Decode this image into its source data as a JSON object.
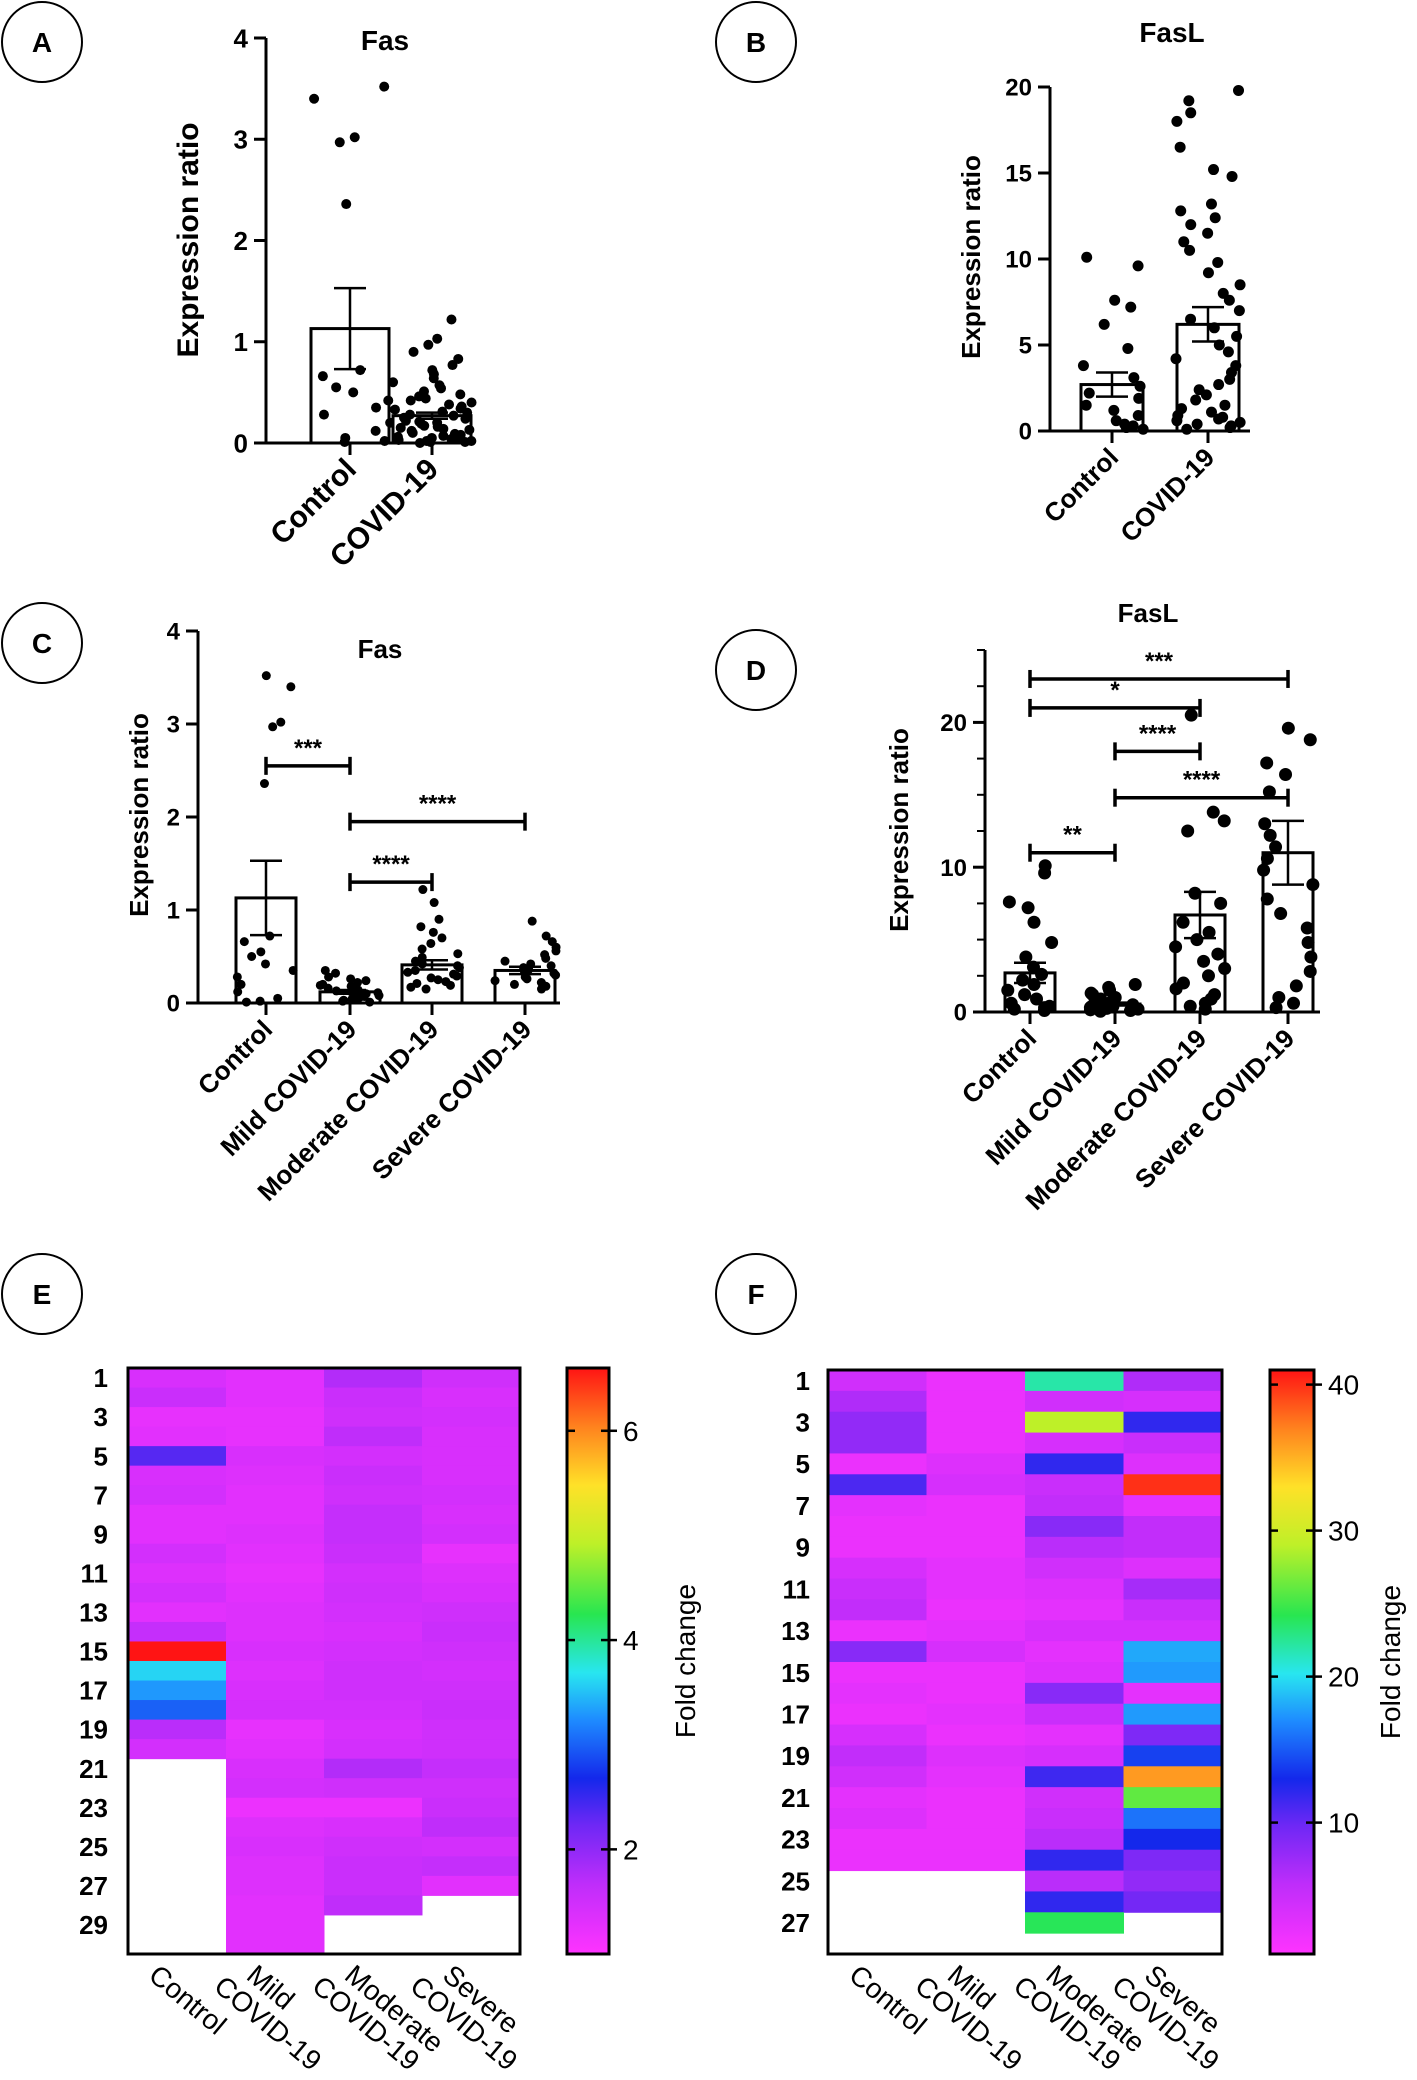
{
  "chart_data": [
    {
      "panel": "A",
      "type": "bar",
      "title": "Fas",
      "ylabel": "Expression ratio",
      "ylim": [
        0,
        4
      ],
      "yticks": [
        0,
        1,
        2,
        3,
        4
      ],
      "yticks_label": [
        "0",
        "1",
        "2",
        "3",
        "4"
      ],
      "categories": [
        "Control",
        "COVID-19"
      ],
      "values": [
        1.13,
        0.27
      ],
      "sem": [
        0.4,
        0.03
      ],
      "points": [
        [
          3.52,
          3.4,
          3.02,
          2.97,
          2.36,
          0.72,
          0.66,
          0.55,
          0.5,
          0.42,
          0.35,
          0.28,
          0.2,
          0.12,
          0.05,
          0.02,
          0.01
        ],
        [
          1.22,
          1.03,
          0.97,
          0.9,
          0.83,
          0.77,
          0.72,
          0.68,
          0.64,
          0.6,
          0.57,
          0.54,
          0.51,
          0.48,
          0.46,
          0.44,
          0.42,
          0.4,
          0.38,
          0.36,
          0.34,
          0.33,
          0.31,
          0.3,
          0.28,
          0.27,
          0.25,
          0.24,
          0.22,
          0.21,
          0.2,
          0.19,
          0.17,
          0.16,
          0.15,
          0.14,
          0.13,
          0.12,
          0.1,
          0.09,
          0.08,
          0.07,
          0.06,
          0.05,
          0.05,
          0.04,
          0.03,
          0.02,
          0.02,
          0.01,
          0.01,
          0.0
        ]
      ]
    },
    {
      "panel": "B",
      "type": "bar",
      "title": "FasL",
      "ylabel": "Expression ratio",
      "ylim": [
        0,
        20
      ],
      "yticks": [
        0,
        5,
        10,
        15,
        20
      ],
      "yticks_label": [
        "0",
        "5",
        "10",
        "15",
        "20"
      ],
      "categories": [
        "Control",
        "COVID-19"
      ],
      "values": [
        2.7,
        6.2
      ],
      "sem": [
        0.7,
        1.0
      ],
      "points": [
        [
          10.1,
          9.6,
          7.6,
          7.2,
          6.2,
          4.8,
          3.8,
          3.1,
          2.6,
          2.2,
          1.9,
          1.5,
          1.2,
          0.9,
          0.6,
          0.4,
          0.3,
          0.2,
          0.1
        ],
        [
          19.8,
          19.2,
          18.5,
          18.0,
          16.5,
          15.2,
          14.8,
          13.2,
          12.8,
          12.4,
          12.0,
          11.5,
          11.0,
          10.5,
          9.8,
          9.2,
          8.5,
          8.0,
          7.6,
          7.0,
          6.5,
          6.0,
          5.5,
          5.0,
          4.6,
          4.2,
          3.8,
          3.4,
          3.0,
          2.7,
          2.4,
          2.1,
          1.8,
          1.5,
          1.3,
          1.1,
          0.9,
          0.8,
          0.7,
          0.6,
          0.5,
          0.4,
          0.3,
          0.2,
          0.1
        ]
      ]
    },
    {
      "panel": "C",
      "type": "bar",
      "title": "Fas",
      "ylabel": "Expression ratio",
      "ylim": [
        0,
        4
      ],
      "yticks": [
        0,
        1,
        2,
        3,
        4
      ],
      "yticks_label": [
        "0",
        "1",
        "2",
        "3",
        "4"
      ],
      "categories": [
        "Control",
        "Mild COVID-19",
        "Moderate COVID-19",
        "Severe COVID-19"
      ],
      "values": [
        1.13,
        0.12,
        0.41,
        0.35
      ],
      "sem": [
        0.4,
        0.02,
        0.05,
        0.04
      ],
      "points": [
        [
          3.52,
          3.4,
          3.02,
          2.97,
          2.36,
          0.72,
          0.66,
          0.55,
          0.5,
          0.42,
          0.35,
          0.28,
          0.2,
          0.12,
          0.05,
          0.02,
          0.01
        ],
        [
          0.35,
          0.32,
          0.28,
          0.26,
          0.24,
          0.22,
          0.2,
          0.19,
          0.18,
          0.16,
          0.15,
          0.14,
          0.13,
          0.12,
          0.11,
          0.1,
          0.09,
          0.08,
          0.07,
          0.06,
          0.05,
          0.04,
          0.03,
          0.02,
          0.01
        ],
        [
          1.22,
          1.08,
          0.9,
          0.82,
          0.76,
          0.7,
          0.64,
          0.58,
          0.53,
          0.49,
          0.45,
          0.42,
          0.4,
          0.38,
          0.35,
          0.33,
          0.31,
          0.29,
          0.27,
          0.25,
          0.23,
          0.21,
          0.19,
          0.17,
          0.15
        ],
        [
          0.88,
          0.72,
          0.66,
          0.6,
          0.56,
          0.52,
          0.48,
          0.45,
          0.42,
          0.4,
          0.38,
          0.36,
          0.34,
          0.32,
          0.3,
          0.28,
          0.26,
          0.24,
          0.22,
          0.2,
          0.18,
          0.15
        ]
      ],
      "significance": [
        {
          "from": 0,
          "to": 1,
          "y": 2.55,
          "label": "***"
        },
        {
          "from": 1,
          "to": 2,
          "y": 1.3,
          "label": "****"
        },
        {
          "from": 1,
          "to": 3,
          "y": 1.95,
          "label": "****"
        }
      ]
    },
    {
      "panel": "D",
      "type": "bar",
      "title": "FasL",
      "ylabel": "Expression ratio",
      "ylim": [
        0,
        25
      ],
      "yticks": [
        0,
        10,
        20
      ],
      "yticks_label": [
        "0",
        "10",
        "20"
      ],
      "minor_step": 2.5,
      "categories": [
        "Control",
        "Mild COVID-19",
        "Moderate COVID-19",
        "Severe COVID-19"
      ],
      "values": [
        2.7,
        0.55,
        6.7,
        11.0
      ],
      "sem": [
        0.7,
        0.1,
        1.6,
        2.2
      ],
      "points": [
        [
          10.1,
          9.6,
          7.6,
          7.2,
          6.2,
          4.8,
          3.8,
          3.1,
          2.6,
          2.2,
          1.9,
          1.5,
          1.2,
          0.9,
          0.6,
          0.4,
          0.3,
          0.2,
          0.1
        ],
        [
          1.9,
          1.7,
          1.5,
          1.3,
          1.2,
          1.0,
          0.9,
          0.8,
          0.7,
          0.6,
          0.5,
          0.4,
          0.35,
          0.3,
          0.25,
          0.2,
          0.15,
          0.1,
          0.05
        ],
        [
          20.5,
          13.8,
          13.2,
          12.5,
          8.2,
          7.5,
          6.2,
          5.5,
          5.0,
          4.5,
          4.0,
          3.5,
          3.0,
          2.5,
          2.0,
          1.6,
          1.2,
          0.9,
          0.6,
          0.4,
          0.2
        ],
        [
          19.6,
          18.8,
          17.2,
          16.4,
          15.2,
          13.0,
          12.2,
          11.4,
          10.6,
          9.8,
          8.8,
          7.8,
          6.8,
          5.8,
          4.8,
          3.8,
          2.8,
          1.8,
          1.0,
          0.6,
          0.3
        ]
      ],
      "significance": [
        {
          "from": 0,
          "to": 3,
          "y": 23.0,
          "label": "***"
        },
        {
          "from": 0,
          "to": 2,
          "y": 21.0,
          "label": "*"
        },
        {
          "from": 1,
          "to": 2,
          "y": 18.0,
          "label": "****"
        },
        {
          "from": 1,
          "to": 3,
          "y": 14.8,
          "label": "****"
        },
        {
          "from": 0,
          "to": 1,
          "y": 11.0,
          "label": "**"
        }
      ]
    },
    {
      "panel": "E",
      "type": "heatmap",
      "columns": [
        "Control",
        "Mild COVID-19",
        "Moderate COVID-19",
        "Severe COVID-19"
      ],
      "row_labels": [
        "1",
        "3",
        "5",
        "7",
        "9",
        "11",
        "13",
        "15",
        "17",
        "19",
        "21",
        "23",
        "25",
        "27",
        "29"
      ],
      "n_rows": 30,
      "colorbar": {
        "label": "Fold change",
        "vmin": 1.0,
        "vmax": 6.6,
        "ticks": [
          2,
          4,
          6
        ],
        "ticks_label": [
          "2",
          "4",
          "6"
        ]
      },
      "values": [
        [
          1.4,
          1.3,
          1.75,
          1.5
        ],
        [
          1.55,
          1.3,
          1.55,
          1.4
        ],
        [
          1.25,
          1.25,
          1.5,
          1.45
        ],
        [
          1.3,
          1.25,
          1.65,
          1.4
        ],
        [
          2.35,
          1.4,
          1.45,
          1.4
        ],
        [
          1.4,
          1.35,
          1.55,
          1.4
        ],
        [
          1.45,
          1.3,
          1.5,
          1.45
        ],
        [
          1.3,
          1.3,
          1.6,
          1.4
        ],
        [
          1.3,
          1.35,
          1.6,
          1.45
        ],
        [
          1.45,
          1.3,
          1.55,
          1.25
        ],
        [
          1.35,
          1.25,
          1.45,
          1.35
        ],
        [
          1.45,
          1.3,
          1.5,
          1.4
        ],
        [
          1.3,
          1.35,
          1.45,
          1.5
        ],
        [
          1.6,
          1.35,
          1.4,
          1.55
        ],
        [
          6.6,
          1.4,
          1.45,
          1.5
        ],
        [
          3.6,
          1.35,
          1.5,
          1.45
        ],
        [
          3.3,
          1.4,
          1.5,
          1.5
        ],
        [
          3.0,
          1.45,
          1.45,
          1.55
        ],
        [
          1.7,
          1.25,
          1.4,
          1.5
        ],
        [
          1.45,
          1.3,
          1.45,
          1.5
        ],
        [
          null,
          1.4,
          1.75,
          1.6
        ],
        [
          null,
          1.45,
          1.5,
          1.5
        ],
        [
          null,
          1.2,
          1.2,
          1.55
        ],
        [
          null,
          1.35,
          1.4,
          1.65
        ],
        [
          null,
          1.4,
          1.5,
          1.45
        ],
        [
          null,
          1.35,
          1.55,
          1.6
        ],
        [
          null,
          1.35,
          1.55,
          1.3
        ],
        [
          null,
          1.3,
          1.65,
          null
        ],
        [
          null,
          1.3,
          null,
          null
        ],
        [
          null,
          1.3,
          null,
          null
        ]
      ]
    },
    {
      "panel": "F",
      "type": "heatmap",
      "columns": [
        "Control",
        "Mild COVID-19",
        "Moderate COVID-19",
        "Severe COVID-19"
      ],
      "row_labels": [
        "1",
        "3",
        "5",
        "7",
        "9",
        "11",
        "13",
        "15",
        "17",
        "19",
        "21",
        "23",
        "25",
        "27"
      ],
      "n_rows": 28,
      "colorbar": {
        "label": "Fold change",
        "vmin": 1.0,
        "vmax": 41.0,
        "ticks": [
          10,
          20,
          30,
          40
        ],
        "ticks_label": [
          "10",
          "20",
          "30",
          "40"
        ]
      },
      "values": [
        [
          4.5,
          2.5,
          22.0,
          6.5
        ],
        [
          6.5,
          2.5,
          4.5,
          4.0
        ],
        [
          8.0,
          2.5,
          29.0,
          12.0
        ],
        [
          8.0,
          2.5,
          4.0,
          5.0
        ],
        [
          2.5,
          3.5,
          12.0,
          3.5
        ],
        [
          11.0,
          4.0,
          5.0,
          40.0
        ],
        [
          3.0,
          2.5,
          5.5,
          3.0
        ],
        [
          2.5,
          2.5,
          8.5,
          5.5
        ],
        [
          2.5,
          2.5,
          6.0,
          5.5
        ],
        [
          4.0,
          3.0,
          4.5,
          3.5
        ],
        [
          5.0,
          3.0,
          3.5,
          7.0
        ],
        [
          5.5,
          2.5,
          3.0,
          5.0
        ],
        [
          2.5,
          3.0,
          4.0,
          4.0
        ],
        [
          8.5,
          4.0,
          3.0,
          18.0
        ],
        [
          2.5,
          2.5,
          3.5,
          17.5
        ],
        [
          3.0,
          2.5,
          8.5,
          3.0
        ],
        [
          2.5,
          3.0,
          5.0,
          17.5
        ],
        [
          4.0,
          2.5,
          3.0,
          9.0
        ],
        [
          5.5,
          3.5,
          4.0,
          14.0
        ],
        [
          4.5,
          3.0,
          11.5,
          36.0
        ],
        [
          3.0,
          2.5,
          4.5,
          26.0
        ],
        [
          3.5,
          2.5,
          5.0,
          16.0
        ],
        [
          2.5,
          2.5,
          6.0,
          13.0
        ],
        [
          2.5,
          2.5,
          12.0,
          9.0
        ],
        [
          null,
          null,
          6.0,
          8.0
        ],
        [
          null,
          null,
          12.0,
          9.5
        ],
        [
          null,
          null,
          24.0,
          null
        ],
        [
          null,
          null,
          null,
          null
        ]
      ]
    }
  ]
}
